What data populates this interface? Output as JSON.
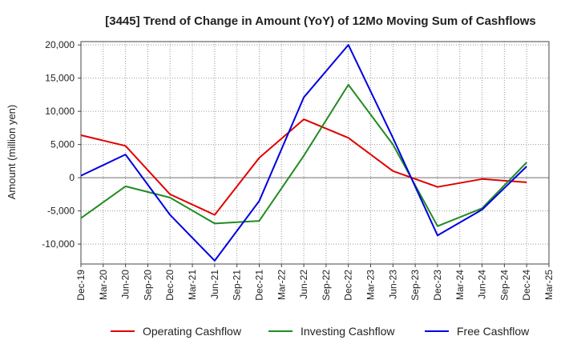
{
  "chart_data": {
    "type": "line",
    "title": "[3445]  Trend of Change in Amount (YoY) of 12Mo Moving Sum of Cashflows",
    "xlabel": "",
    "ylabel": "Amount (million yen)",
    "ylim": [
      -13000,
      20500
    ],
    "yticks": [
      20000,
      15000,
      10000,
      5000,
      0,
      -5000,
      -10000
    ],
    "ytick_labels": [
      "20,000",
      "15,000",
      "10,000",
      "5,000",
      "0",
      "-5,000",
      "-10,000"
    ],
    "categories": [
      "Dec-19",
      "Mar-20",
      "Jun-20",
      "Sep-20",
      "Dec-20",
      "Mar-21",
      "Jun-21",
      "Sep-21",
      "Dec-21",
      "Mar-22",
      "Jun-22",
      "Sep-22",
      "Dec-22",
      "Mar-23",
      "Jun-23",
      "Sep-23",
      "Dec-23",
      "Mar-24",
      "Jun-24",
      "Sep-24",
      "Dec-24",
      "Mar-25"
    ],
    "series": [
      {
        "name": "Operating Cashflow",
        "color": "#e00000",
        "points": [
          [
            0,
            6400
          ],
          [
            2,
            4800
          ],
          [
            4,
            -2500
          ],
          [
            6,
            -5600
          ],
          [
            8,
            3000
          ],
          [
            10,
            8800
          ],
          [
            12,
            6000
          ],
          [
            14,
            1000
          ],
          [
            16,
            -1400
          ],
          [
            18,
            -200
          ],
          [
            20,
            -700
          ]
        ]
      },
      {
        "name": "Investing Cashflow",
        "color": "#228b22",
        "points": [
          [
            0,
            -6100
          ],
          [
            2,
            -1300
          ],
          [
            4,
            -3000
          ],
          [
            6,
            -6900
          ],
          [
            8,
            -6500
          ],
          [
            10,
            3300
          ],
          [
            12,
            14000
          ],
          [
            14,
            5000
          ],
          [
            16,
            -7300
          ],
          [
            18,
            -4600
          ],
          [
            20,
            2300
          ]
        ]
      },
      {
        "name": "Free Cashflow",
        "color": "#0000e0",
        "points": [
          [
            0,
            300
          ],
          [
            2,
            3500
          ],
          [
            4,
            -5600
          ],
          [
            6,
            -12500
          ],
          [
            8,
            -3500
          ],
          [
            10,
            12100
          ],
          [
            12,
            20000
          ],
          [
            14,
            6000
          ],
          [
            16,
            -8700
          ],
          [
            18,
            -4800
          ],
          [
            20,
            1700
          ]
        ]
      }
    ]
  }
}
